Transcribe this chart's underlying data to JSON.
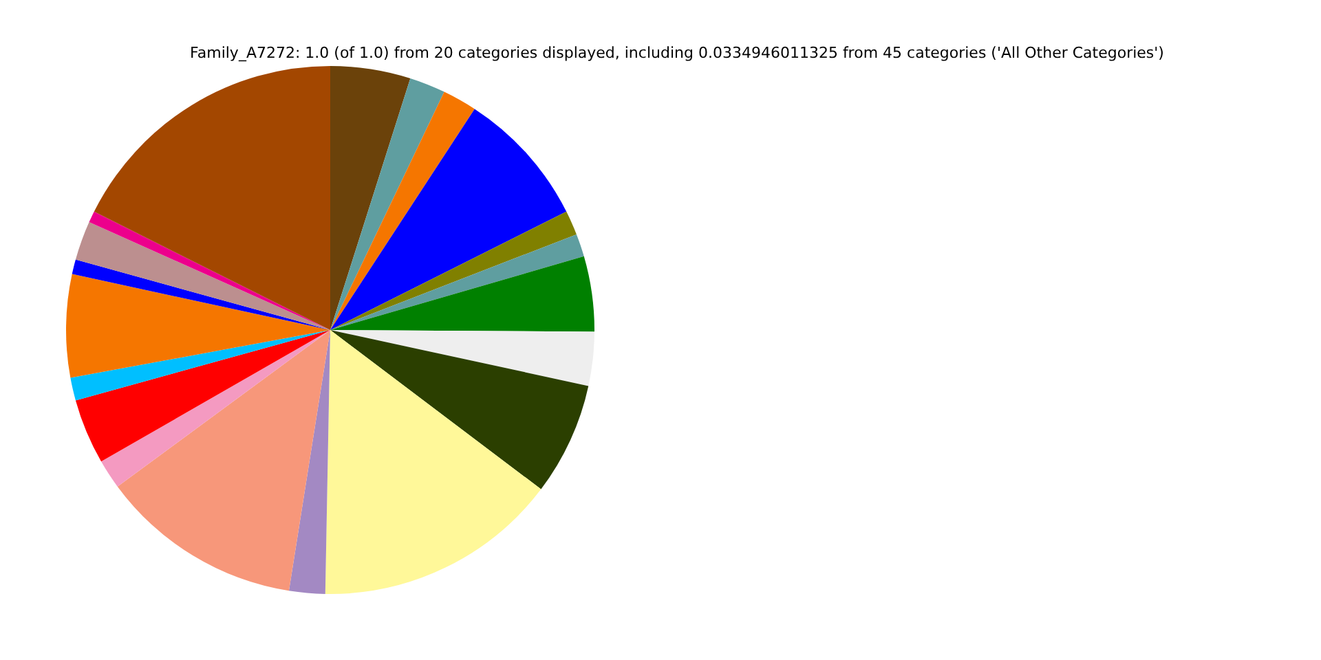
{
  "chart_data": {
    "type": "pie",
    "title": "Family_A7272: 1.0 (of 1.0) from 20 categories displayed, including 0.0334946011325 from 45 categories ('All Other Categories')",
    "categories": [
      null,
      null,
      null,
      null,
      null,
      null,
      null,
      null,
      null,
      null,
      null,
      null,
      null,
      null,
      null,
      null,
      null,
      null,
      null,
      null
    ],
    "values": [
      4.9,
      2.2,
      2.1,
      8.4,
      1.5,
      1.4,
      4.6,
      3.3,
      6.9,
      15.0,
      2.2,
      12.4,
      1.8,
      4.0,
      1.4,
      6.3,
      0.9,
      2.4,
      0.7,
      17.6
    ],
    "colors": [
      "#6b420a",
      "#5f9ea0",
      "#f57600",
      "#0000ff",
      "#808000",
      "#5f9ea0",
      "#008000",
      "#eeeeee",
      "#2b3f00",
      "#fff899",
      "#a389c3",
      "#f7977a",
      "#f49ac1",
      "#ff0000",
      "#00bfff",
      "#f57600",
      "#0000ff",
      "#bc8f8f",
      "#ec008c",
      "#a34700"
    ],
    "legend": false
  }
}
